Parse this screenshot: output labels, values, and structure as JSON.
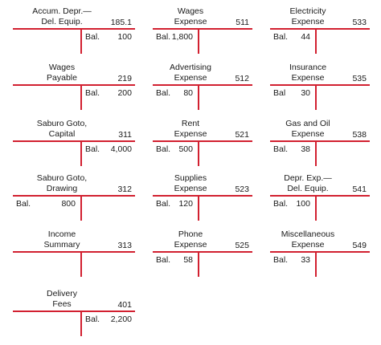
{
  "accounts": [
    {
      "title": [
        "Accum. Depr.—",
        "Del. Equip."
      ],
      "number": "185.1",
      "side": "credit",
      "bal_label": "Bal.",
      "balance": "100"
    },
    {
      "title": [
        "Wages",
        "Expense"
      ],
      "number": "511",
      "side": "debit",
      "bal_label": "Bal.",
      "balance": "1,800"
    },
    {
      "title": [
        "Electricity",
        "Expense"
      ],
      "number": "533",
      "side": "debit",
      "bal_label": "Bal.",
      "balance": "44"
    },
    {
      "title": [
        "Wages",
        "Payable"
      ],
      "number": "219",
      "side": "credit",
      "bal_label": "Bal.",
      "balance": "200"
    },
    {
      "title": [
        "Advertising",
        "Expense"
      ],
      "number": "512",
      "side": "debit",
      "bal_label": "Bal.",
      "balance": "80"
    },
    {
      "title": [
        "Insurance",
        "Expense"
      ],
      "number": "535",
      "side": "debit",
      "bal_label": "Bal",
      "balance": "30"
    },
    {
      "title": [
        "Saburo Goto,",
        "Capital"
      ],
      "number": "311",
      "side": "credit",
      "bal_label": "Bal.",
      "balance": "4,000"
    },
    {
      "title": [
        "Rent",
        "Expense"
      ],
      "number": "521",
      "side": "debit",
      "bal_label": "Bal.",
      "balance": "500"
    },
    {
      "title": [
        "Gas and Oil",
        "Expense"
      ],
      "number": "538",
      "side": "debit",
      "bal_label": "Bal.",
      "balance": "38"
    },
    {
      "title": [
        "Saburo Goto,",
        "Drawing"
      ],
      "number": "312",
      "side": "debit",
      "bal_label": "Bal.",
      "balance": "800"
    },
    {
      "title": [
        "Supplies",
        "Expense"
      ],
      "number": "523",
      "side": "debit",
      "bal_label": "Bal.",
      "balance": "120"
    },
    {
      "title": [
        "Depr. Exp.—",
        "Del. Equip."
      ],
      "number": "541",
      "side": "debit",
      "bal_label": "Bal.",
      "balance": "100"
    },
    {
      "title": [
        "Income",
        "Summary"
      ],
      "number": "313",
      "side": "none",
      "bal_label": "",
      "balance": ""
    },
    {
      "title": [
        "Phone",
        "Expense"
      ],
      "number": "525",
      "side": "debit",
      "bal_label": "Bal.",
      "balance": "58"
    },
    {
      "title": [
        "Miscellaneous",
        "Expense"
      ],
      "number": "549",
      "side": "debit",
      "bal_label": "Bal.",
      "balance": "33"
    },
    {
      "title": [
        "Delivery",
        "Fees"
      ],
      "number": "401",
      "side": "credit",
      "bal_label": "Bal.",
      "balance": "2,200"
    }
  ],
  "colors": {
    "rule": "#d22030",
    "text": "#1a1a1a"
  }
}
